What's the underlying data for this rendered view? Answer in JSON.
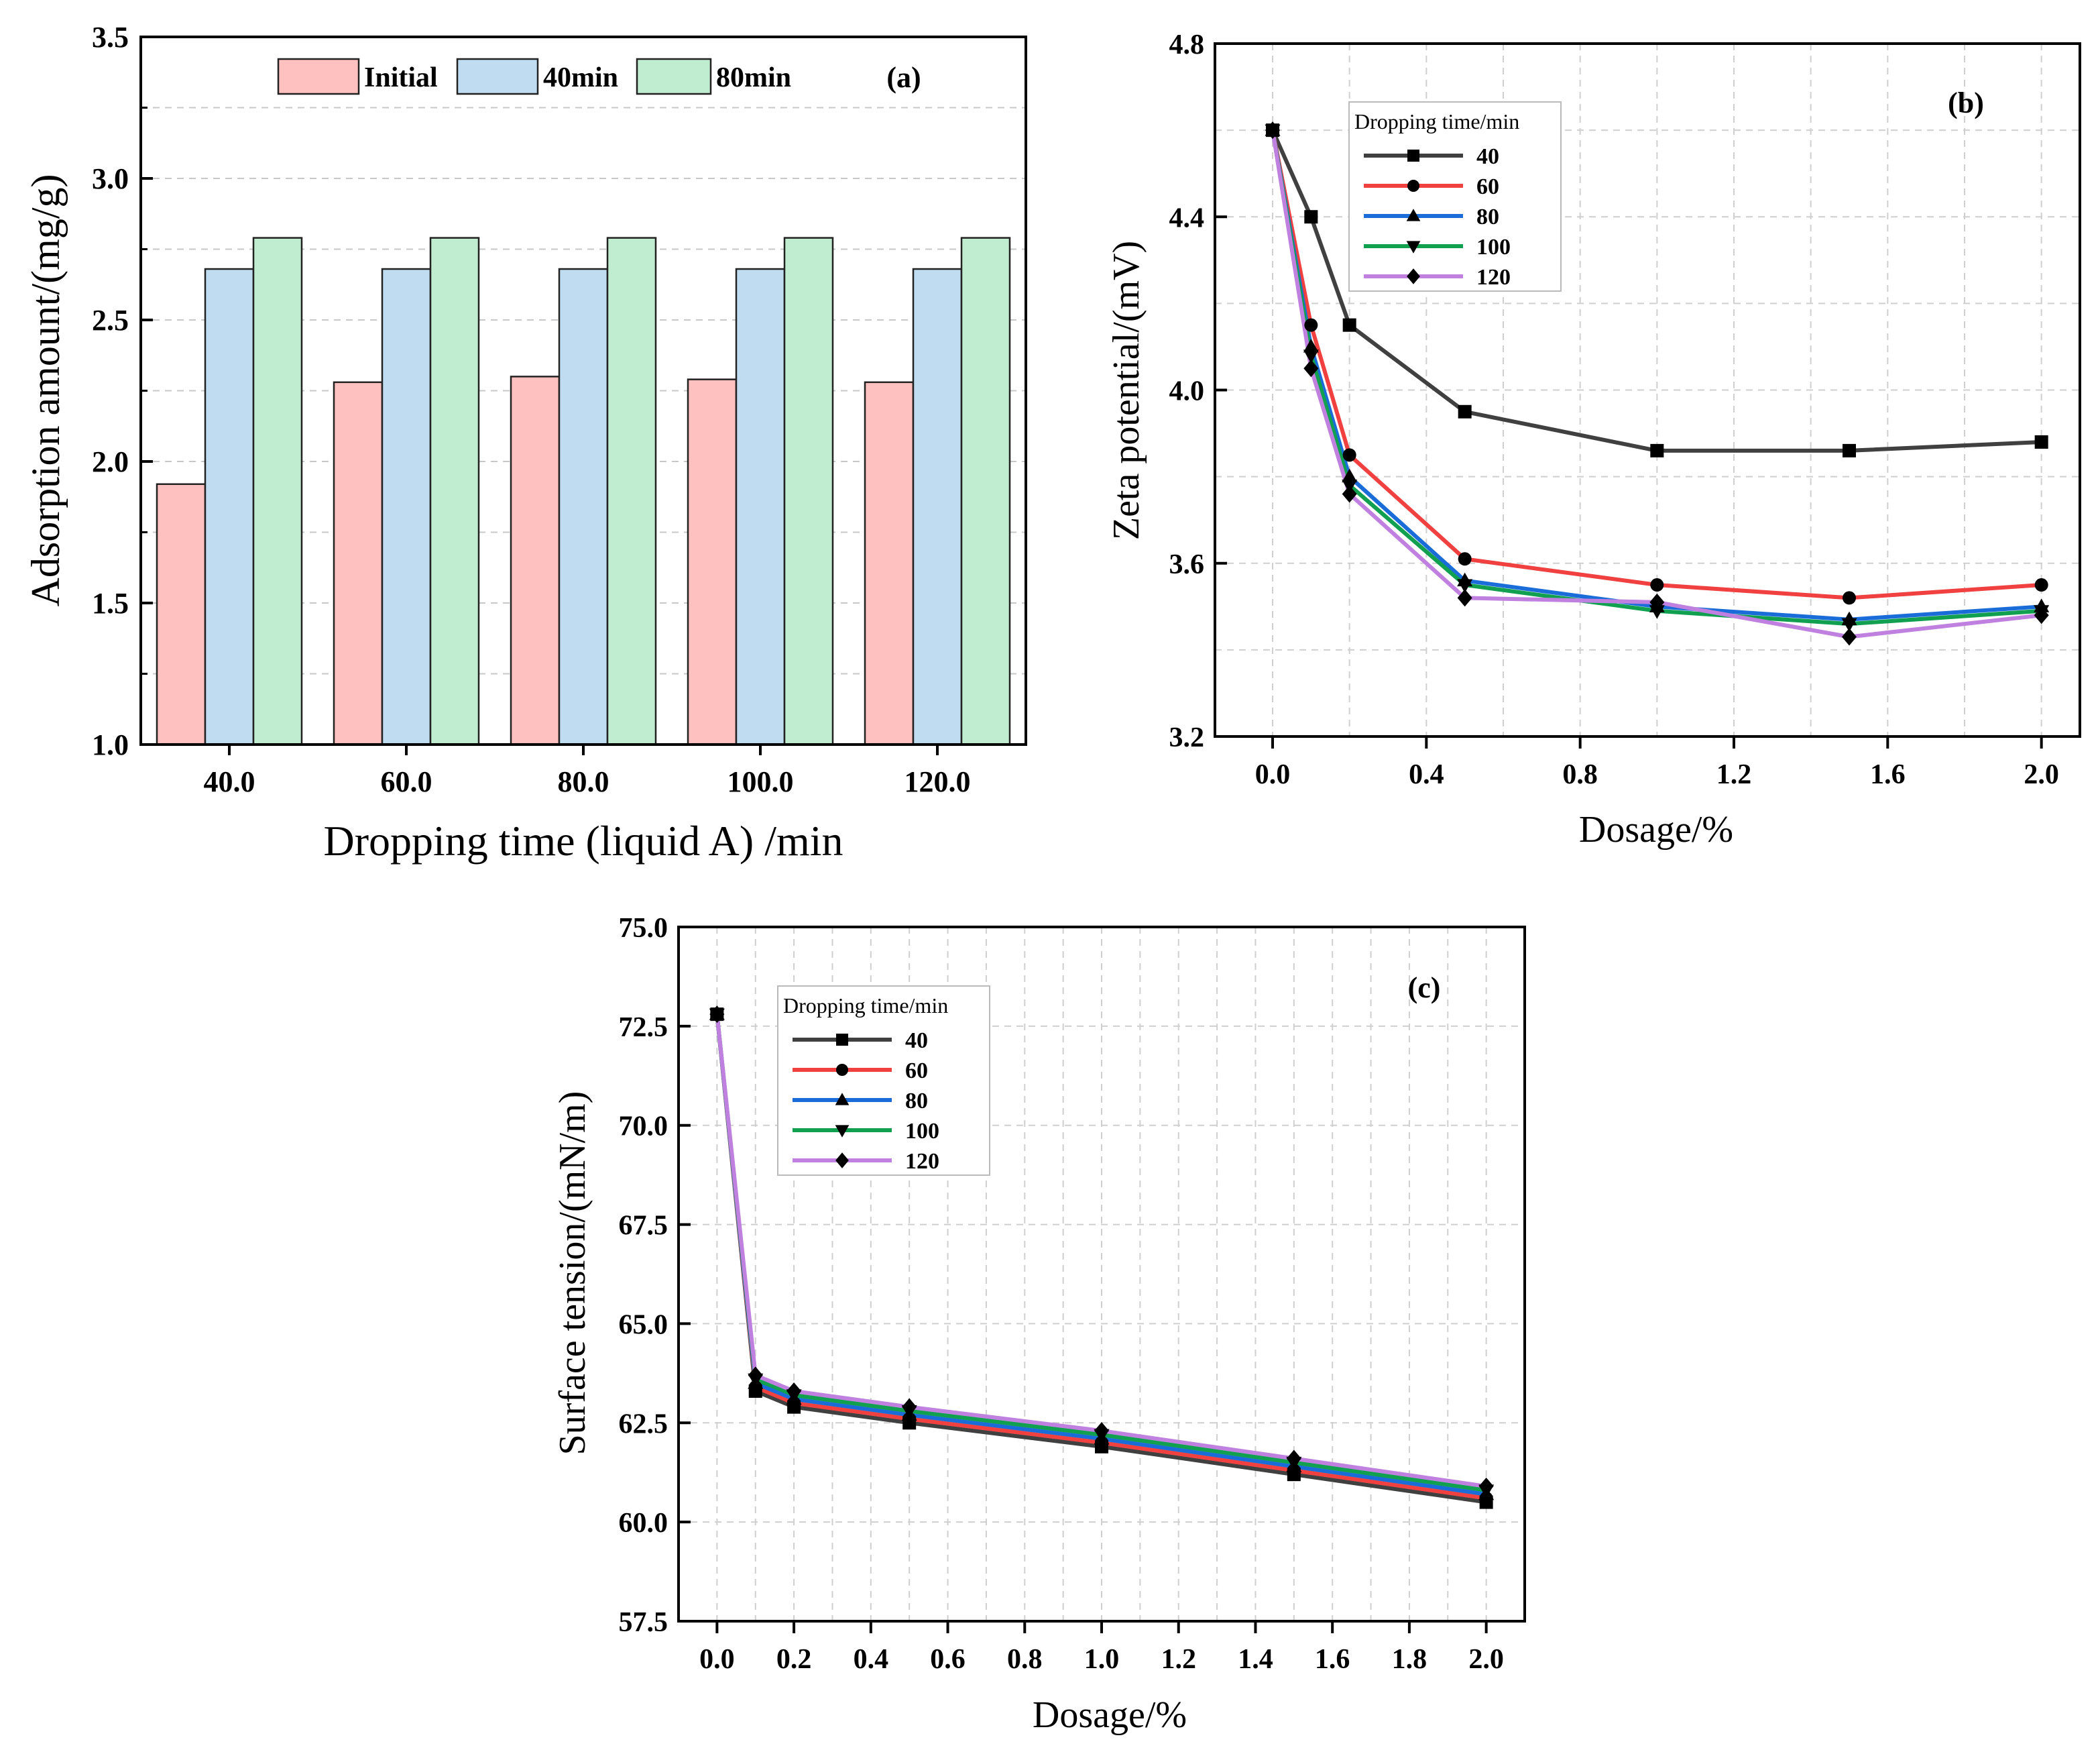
{
  "chart_data": [
    {
      "type": "bar",
      "panel_label": "(a)",
      "xlabel": "Dropping time (liquid A) /min",
      "ylabel": "Adsorption amount/(mg/g)",
      "categories": [
        "40.0",
        "60.0",
        "80.0",
        "100.0",
        "120.0"
      ],
      "ylim": [
        1.0,
        3.5
      ],
      "yticks": [
        1.0,
        1.5,
        2.0,
        2.5,
        3.0,
        3.5
      ],
      "ytick_labels": [
        "1.0",
        "1.5",
        "2.0",
        "2.5",
        "3.0",
        "3.5"
      ],
      "grid": true,
      "legend_position": "top",
      "series": [
        {
          "name": "Initial",
          "color": "#FFC0C0",
          "values": [
            1.92,
            2.28,
            2.3,
            2.29,
            2.28
          ]
        },
        {
          "name": "40min",
          "color": "#C0DCF0",
          "values": [
            2.68,
            2.68,
            2.68,
            2.68,
            2.68
          ]
        },
        {
          "name": "80min",
          "color": "#C0ECD0",
          "values": [
            2.79,
            2.79,
            2.79,
            2.79,
            2.79
          ]
        }
      ]
    },
    {
      "type": "line",
      "panel_label": "(b)",
      "xlabel": "Dosage/%",
      "ylabel": "Zeta potential/(mV)",
      "xlim": [
        -0.15,
        2.1
      ],
      "ylim": [
        3.2,
        4.8
      ],
      "xticks": [
        0.0,
        0.4,
        0.8,
        1.2,
        1.6,
        2.0
      ],
      "xtick_labels": [
        "0.0",
        "0.4",
        "0.8",
        "1.2",
        "1.6",
        "2.0"
      ],
      "yticks": [
        3.2,
        3.6,
        4.0,
        4.4,
        4.8
      ],
      "ytick_labels": [
        "3.2",
        "3.6",
        "4.0",
        "4.4",
        "4.8"
      ],
      "grid": true,
      "legend_title": "Dropping time/min",
      "legend_position": "top-left",
      "x": [
        0.0,
        0.1,
        0.2,
        0.5,
        1.0,
        1.5,
        2.0
      ],
      "series": [
        {
          "name": "40",
          "color": "#404040",
          "marker": "square",
          "values": [
            4.6,
            4.4,
            4.15,
            3.95,
            3.86,
            3.86,
            3.88
          ]
        },
        {
          "name": "60",
          "color": "#F04040",
          "marker": "circle",
          "values": [
            4.6,
            4.15,
            3.85,
            3.61,
            3.55,
            3.52,
            3.55
          ]
        },
        {
          "name": "80",
          "color": "#1A6CD8",
          "marker": "triangle-up",
          "values": [
            4.6,
            4.1,
            3.8,
            3.56,
            3.5,
            3.47,
            3.5
          ]
        },
        {
          "name": "100",
          "color": "#10A050",
          "marker": "triangle-down",
          "values": [
            4.6,
            4.08,
            3.78,
            3.55,
            3.49,
            3.46,
            3.49
          ]
        },
        {
          "name": "120",
          "color": "#C080E0",
          "marker": "diamond",
          "values": [
            4.6,
            4.05,
            3.76,
            3.52,
            3.51,
            3.43,
            3.48
          ]
        }
      ]
    },
    {
      "type": "line",
      "panel_label": "(c)",
      "xlabel": "Dosage/%",
      "ylabel": "Surface tension/(mN/m)",
      "xlim": [
        -0.1,
        2.1
      ],
      "ylim": [
        57.5,
        75.0
      ],
      "xticks": [
        0.0,
        0.2,
        0.4,
        0.6,
        0.8,
        1.0,
        1.2,
        1.4,
        1.6,
        1.8,
        2.0
      ],
      "xtick_labels": [
        "0.0",
        "0.2",
        "0.4",
        "0.6",
        "0.8",
        "1.0",
        "1.2",
        "1.4",
        "1.6",
        "1.8",
        "2.0"
      ],
      "yticks": [
        57.5,
        60.0,
        62.5,
        65.0,
        67.5,
        70.0,
        72.5,
        75.0
      ],
      "ytick_labels": [
        "57.5",
        "60.0",
        "62.5",
        "65.0",
        "67.5",
        "70.0",
        "72.5",
        "75.0"
      ],
      "grid": true,
      "legend_title": "Dropping time/min",
      "legend_position": "top-left",
      "x": [
        0.0,
        0.1,
        0.2,
        0.5,
        1.0,
        1.5,
        2.0
      ],
      "series": [
        {
          "name": "40",
          "color": "#404040",
          "marker": "square",
          "values": [
            72.8,
            63.3,
            62.9,
            62.5,
            61.9,
            61.2,
            60.5
          ]
        },
        {
          "name": "60",
          "color": "#F04040",
          "marker": "circle",
          "values": [
            72.8,
            63.4,
            63.0,
            62.6,
            62.0,
            61.3,
            60.6
          ]
        },
        {
          "name": "80",
          "color": "#1A6CD8",
          "marker": "triangle-up",
          "values": [
            72.8,
            63.5,
            63.1,
            62.7,
            62.1,
            61.4,
            60.7
          ]
        },
        {
          "name": "100",
          "color": "#10A050",
          "marker": "triangle-down",
          "values": [
            72.8,
            63.6,
            63.2,
            62.8,
            62.2,
            61.5,
            60.8
          ]
        },
        {
          "name": "120",
          "color": "#C080E0",
          "marker": "diamond",
          "values": [
            72.8,
            63.7,
            63.3,
            62.9,
            62.3,
            61.6,
            60.9
          ]
        }
      ]
    }
  ]
}
